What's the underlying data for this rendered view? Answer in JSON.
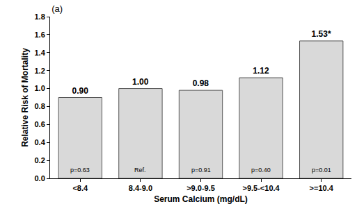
{
  "chart_data": {
    "type": "bar",
    "title": "(a)",
    "x_label": "Serum Calcium (mg/dL)",
    "y_label": "Relative Risk of Mortality",
    "categories": [
      "<8.4",
      "8.4-9.0",
      ">9.0-9.5",
      ">9.5-<10.4",
      ">=10.4"
    ],
    "values": [
      0.9,
      1.0,
      0.98,
      1.12,
      1.53
    ],
    "value_labels": [
      "0.90",
      "1.00",
      "0.98",
      "1.12",
      "1.53*"
    ],
    "annotations": [
      "p=0.63",
      "Ref.",
      "p=0.91",
      "p=0.40",
      "p=0.01"
    ],
    "color": "#d9d9d9",
    "ylim": [
      0,
      1.8
    ],
    "yticks": [
      {
        "value": 0,
        "label": "0.0"
      },
      {
        "value": 0.2,
        "label": "0.2"
      },
      {
        "value": 0.4,
        "label": "0.4"
      },
      {
        "value": 0.6,
        "label": "0.6"
      },
      {
        "value": 0.8,
        "label": "0.8"
      },
      {
        "value": 1,
        "label": "1.0"
      },
      {
        "value": 1.2,
        "label": "1.2"
      },
      {
        "value": 1.4,
        "label": "1.4"
      },
      {
        "value": 1.6,
        "label": "1.6"
      },
      {
        "value": 1.8,
        "label": "1.8"
      }
    ],
    "grid": false,
    "data_labels": true
  }
}
